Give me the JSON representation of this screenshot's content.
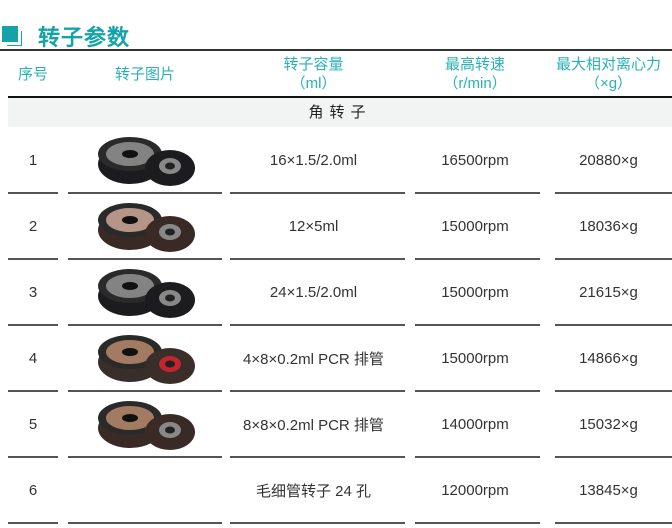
{
  "title": "转子参数",
  "header": {
    "seq": "序号",
    "image": "转子图片",
    "capacity": "转子容量",
    "capacity_unit": "（ml）",
    "speed": "最高转速",
    "speed_unit": "（r/min）",
    "rcf": "最大相对离心力",
    "rcf_unit": "（×g）"
  },
  "section": "角转子",
  "colors": {
    "accent": "#14a3a8"
  },
  "rows": [
    {
      "seq": "1",
      "capacity": "16×1.5/2.0ml",
      "speed": "16500rpm",
      "rcf": "20880×g",
      "image": "rotor-16-tube"
    },
    {
      "seq": "2",
      "capacity": "12×5ml",
      "speed": "15000rpm",
      "rcf": "18036×g",
      "image": "rotor-12-tube-bronze"
    },
    {
      "seq": "3",
      "capacity": "24×1.5/2.0ml",
      "speed": "15000rpm",
      "rcf": "21615×g",
      "image": "rotor-24-tube"
    },
    {
      "seq": "4",
      "capacity": "4×8×0.2ml PCR 排管",
      "speed": "15000rpm",
      "rcf": "14866×g",
      "image": "rotor-pcr-strip"
    },
    {
      "seq": "5",
      "capacity": "8×8×0.2ml PCR 排管",
      "speed": "14000rpm",
      "rcf": "15032×g",
      "image": "rotor-pcr-strip-bronze"
    },
    {
      "seq": "6",
      "capacity": "毛细管转子 24 孔",
      "speed": "12000rpm",
      "rcf": "13845×g",
      "image": ""
    }
  ]
}
